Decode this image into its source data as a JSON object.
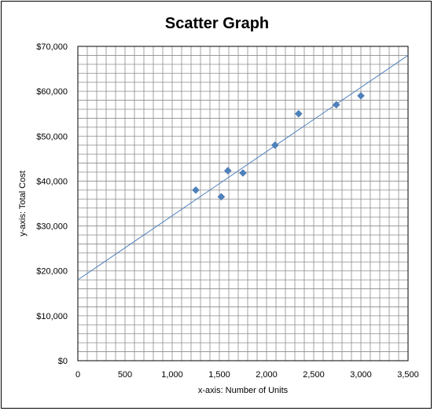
{
  "chart_data": {
    "type": "scatter",
    "title": "Scatter Graph",
    "xlabel": "x-axis: Number of Units",
    "ylabel": "y-axis: Total Cost",
    "xlim": [
      0,
      3500
    ],
    "ylim": [
      0,
      70000
    ],
    "x_ticks": [
      0,
      500,
      1000,
      1500,
      2000,
      2500,
      3000,
      3500
    ],
    "x_tick_labels": [
      "0",
      "500",
      "1,000",
      "1,500",
      "2,000",
      "2,500",
      "3,000",
      "3,500"
    ],
    "y_ticks": [
      0,
      10000,
      20000,
      30000,
      40000,
      50000,
      60000,
      70000
    ],
    "y_tick_labels": [
      "$0",
      "$10,000",
      "$20,000",
      "$30,000",
      "$40,000",
      "$50,000",
      "$60,000",
      "$70,000"
    ],
    "grid": true,
    "minor_grid_x_step": 100,
    "minor_grid_y_step": 2000,
    "points": [
      {
        "x": 1250,
        "y": 38000
      },
      {
        "x": 1520,
        "y": 36500
      },
      {
        "x": 1590,
        "y": 42300
      },
      {
        "x": 1750,
        "y": 41800
      },
      {
        "x": 2090,
        "y": 48000
      },
      {
        "x": 2340,
        "y": 55000
      },
      {
        "x": 2740,
        "y": 57000
      },
      {
        "x": 3000,
        "y": 59000
      }
    ],
    "trendline": {
      "x": [
        0,
        3500
      ],
      "y": [
        18000,
        68000
      ]
    },
    "marker_color": "#4F81BD",
    "trendline_color": "#4F81BD",
    "grid_color": "#8C8C8C",
    "legend": "none"
  }
}
